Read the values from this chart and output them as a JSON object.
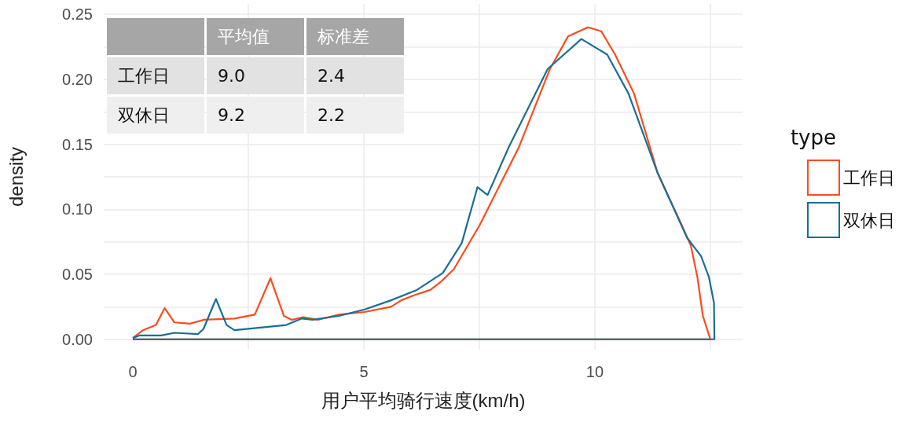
{
  "chart_data": {
    "type": "line",
    "xlabel": "用户平均骑行速度(km/h)",
    "ylabel": "density",
    "legend_title": "type",
    "legend": "right",
    "grid": true,
    "marker": "none",
    "line_style": "solid",
    "xlim": [
      -0.63,
      13.2
    ],
    "xticks": [
      0,
      {
        "value": 2.5,
        "label": null
      },
      5,
      {
        "value": 7.5,
        "label": null
      },
      10,
      {
        "value": 12.5,
        "label": null
      }
    ],
    "ylim": [
      -0.008,
      0.258
    ],
    "yticks": [
      {
        "value": 0,
        "label": "0.00"
      },
      {
        "value": 0.025,
        "label": null
      },
      {
        "value": 0.05,
        "label": "0.05"
      },
      {
        "value": 0.075,
        "label": null
      },
      {
        "value": 0.1,
        "label": "0.10"
      },
      {
        "value": 0.125,
        "label": null
      },
      {
        "value": 0.15,
        "label": "0.15"
      },
      {
        "value": 0.175,
        "label": null
      },
      {
        "value": 0.2,
        "label": "0.20"
      },
      {
        "value": 0.225,
        "label": null
      },
      {
        "value": 0.25,
        "label": "0.25"
      }
    ],
    "annotations": [
      "平均值",
      "标准差",
      "工作日",
      "9.0",
      "2.4",
      "双休日",
      "9.2",
      "2.2"
    ],
    "series": [
      {
        "name": "工作日",
        "color": "#fb4b1c",
        "x": [
          0,
          0.22,
          0.5,
          0.69,
          0.9,
          1.24,
          1.53,
          2.2,
          2.64,
          2.98,
          3.27,
          3.44,
          3.69,
          4.0,
          4.46,
          5.02,
          5.59,
          5.81,
          6.1,
          6.44,
          6.66,
          6.95,
          7.51,
          8.36,
          9.03,
          9.42,
          9.85,
          10.14,
          10.44,
          10.85,
          11.36,
          11.88,
          12.08,
          12.22,
          12.34,
          12.5,
          0
        ],
        "values": [
          0.001,
          0.007,
          0.011,
          0.024,
          0.013,
          0.012,
          0.015,
          0.016,
          0.019,
          0.047,
          0.018,
          0.015,
          0.017,
          0.015,
          0.019,
          0.021,
          0.025,
          0.03,
          0.034,
          0.038,
          0.044,
          0.054,
          0.088,
          0.148,
          0.208,
          0.233,
          0.24,
          0.237,
          0.219,
          0.189,
          0.128,
          0.088,
          0.072,
          0.048,
          0.018,
          0,
          0
        ]
      },
      {
        "name": "双休日",
        "color": "#1a6e94",
        "x": [
          0,
          0.15,
          0.61,
          0.9,
          1.41,
          1.53,
          1.8,
          2.03,
          2.2,
          2.76,
          3.32,
          3.66,
          3.89,
          4.46,
          5.02,
          5.59,
          6.15,
          6.71,
          7.12,
          7.46,
          7.68,
          8.14,
          8.98,
          9.71,
          10.27,
          10.73,
          11.36,
          12.0,
          12.3,
          12.47,
          12.58,
          12.59,
          0
        ],
        "values": [
          0.001,
          0.003,
          0.003,
          0.005,
          0.004,
          0.008,
          0.031,
          0.011,
          0.007,
          0.009,
          0.011,
          0.016,
          0.015,
          0.018,
          0.023,
          0.03,
          0.038,
          0.051,
          0.074,
          0.117,
          0.111,
          0.148,
          0.208,
          0.231,
          0.219,
          0.189,
          0.128,
          0.078,
          0.064,
          0.048,
          0.028,
          0,
          0
        ]
      }
    ]
  }
}
